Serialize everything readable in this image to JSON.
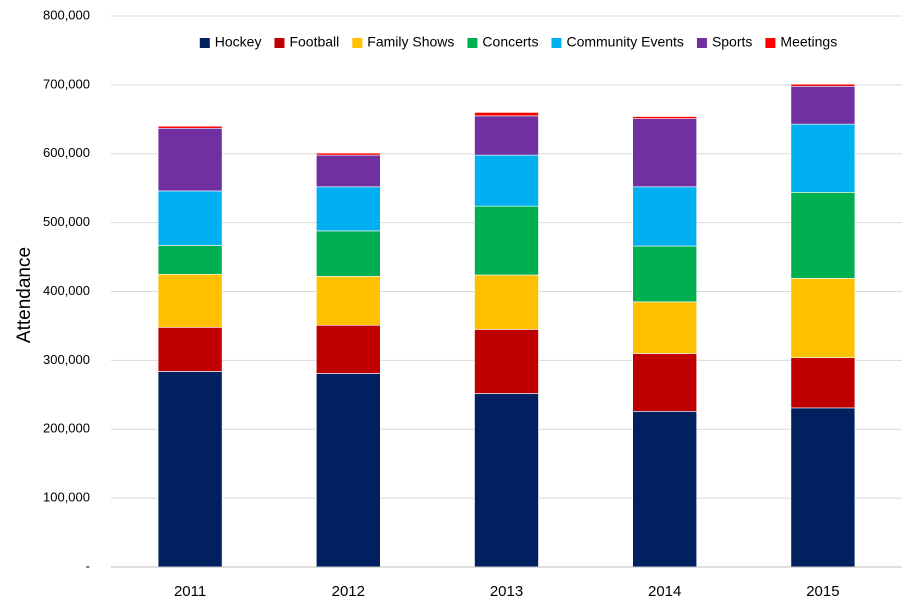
{
  "chart_data": {
    "type": "bar",
    "stacked": true,
    "title": "",
    "xlabel": "",
    "ylabel": "Attendance",
    "ylim": [
      0,
      800000
    ],
    "yticks": [
      0,
      100000,
      200000,
      300000,
      400000,
      500000,
      600000,
      700000,
      800000
    ],
    "ytick_labels": [
      "-",
      "100,000",
      "200,000",
      "300,000",
      "400,000",
      "500,000",
      "600,000",
      "700,000",
      "800,000"
    ],
    "grid": true,
    "legend_position": "top",
    "categories": [
      "2011",
      "2012",
      "2013",
      "2014",
      "2015"
    ],
    "series": [
      {
        "name": "Hockey",
        "color": "#002060",
        "values": [
          284000,
          281000,
          252000,
          226000,
          231000
        ]
      },
      {
        "name": "Football",
        "color": "#C00000",
        "values": [
          64000,
          70000,
          93000,
          84000,
          73000
        ]
      },
      {
        "name": "Family Shows",
        "color": "#FFC000",
        "values": [
          77000,
          71000,
          79000,
          75000,
          115000
        ]
      },
      {
        "name": "Concerts",
        "color": "#00B050",
        "values": [
          42000,
          66000,
          100000,
          81000,
          125000
        ]
      },
      {
        "name": "Community Events",
        "color": "#00B0F0",
        "values": [
          79000,
          64000,
          74000,
          86000,
          99000
        ]
      },
      {
        "name": "Sports",
        "color": "#7030A0",
        "values": [
          91000,
          46000,
          57000,
          99000,
          55000
        ]
      },
      {
        "name": "Meetings",
        "color": "#FF0000",
        "values": [
          3000,
          3000,
          5000,
          3000,
          3000
        ]
      }
    ]
  }
}
